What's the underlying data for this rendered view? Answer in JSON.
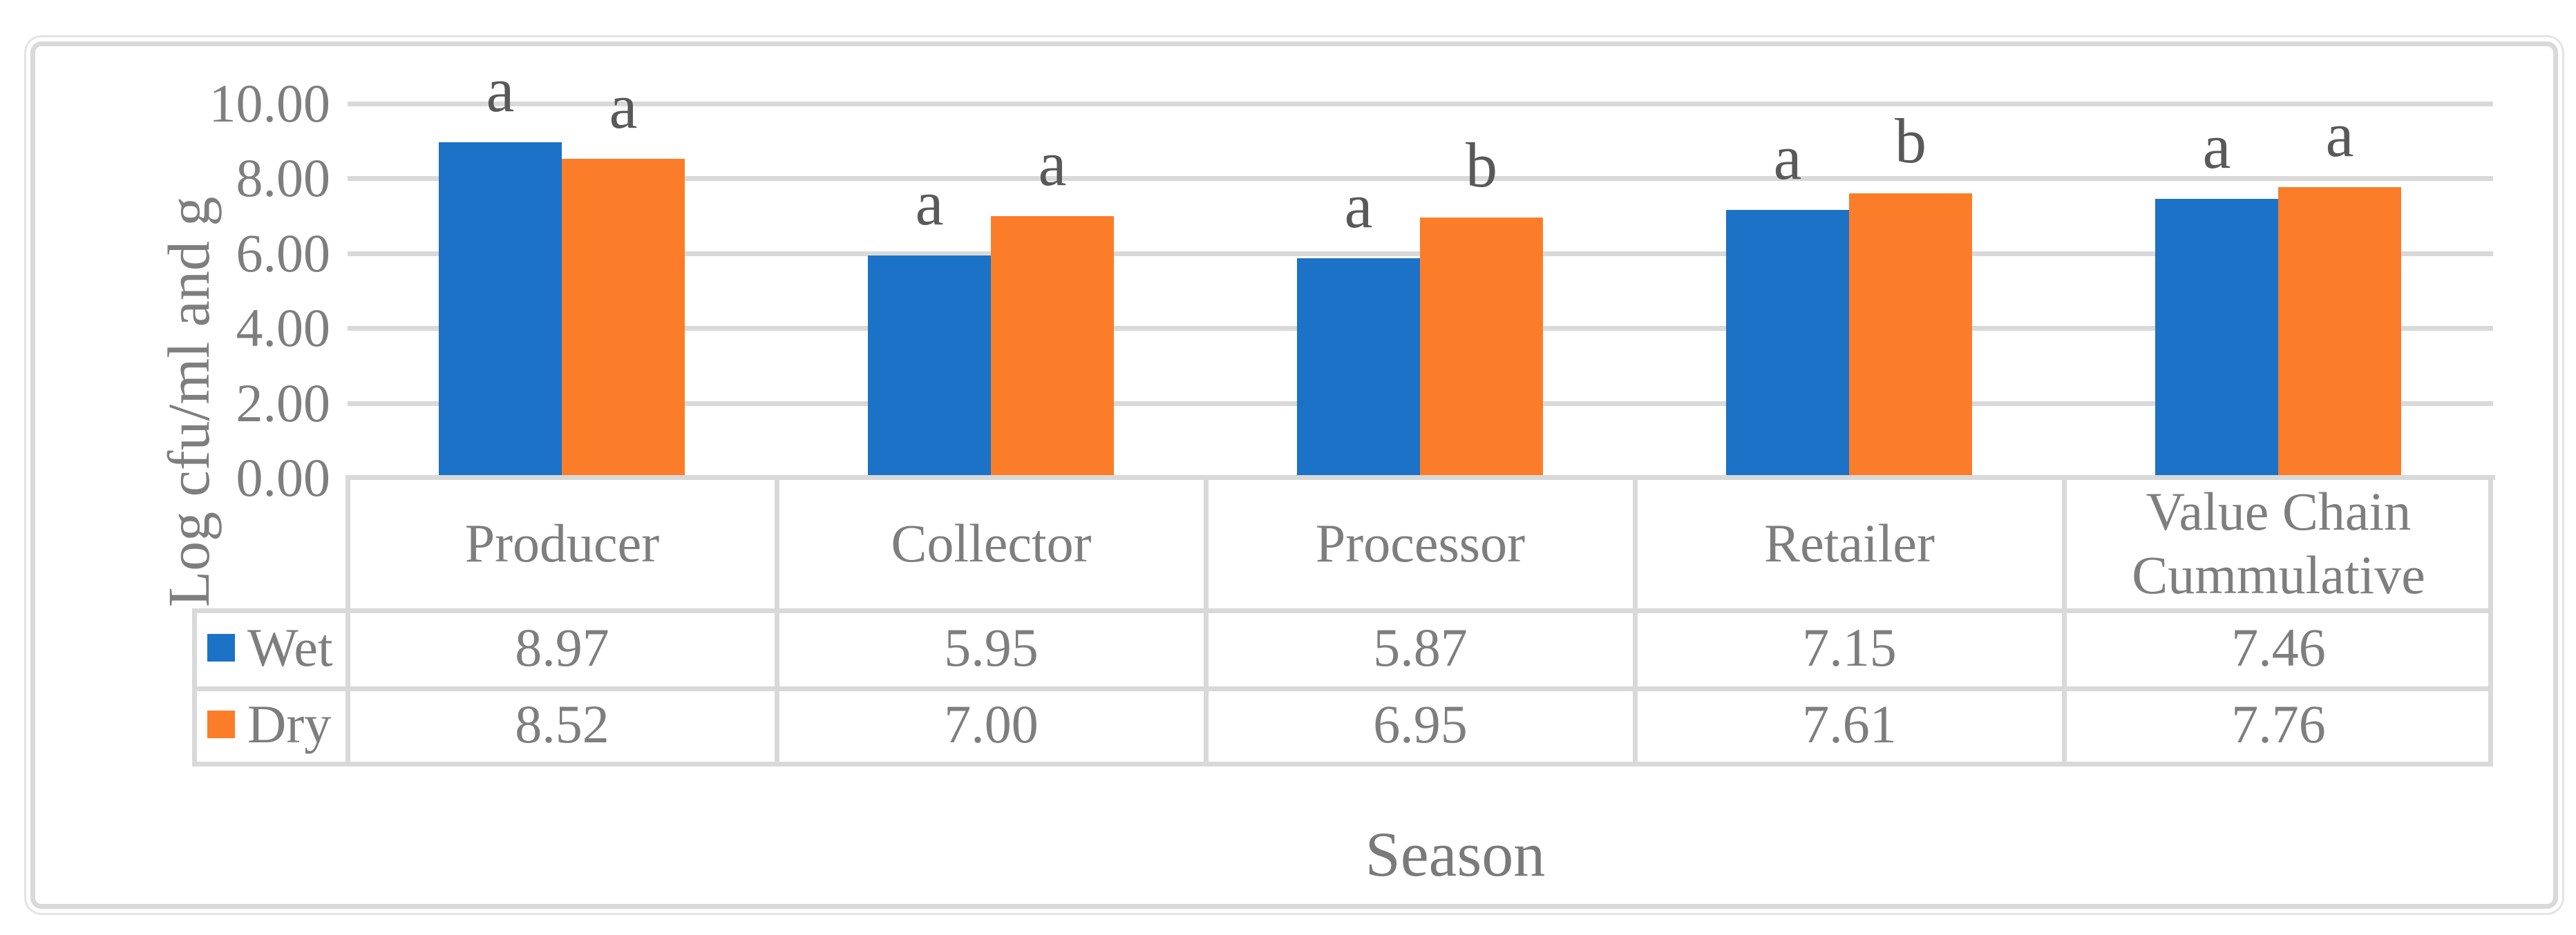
{
  "figure": {
    "ylabel": "Log cfu/ml and g",
    "season_label": "Season"
  },
  "chart_data": {
    "type": "bar",
    "title": "",
    "xlabel": "Season",
    "ylabel": "Log cfu/ml and g",
    "categories": [
      "Producer",
      "Collector",
      "Processor",
      "Retailer",
      "Value Chain Cummulative"
    ],
    "series": [
      {
        "name": "Wet",
        "color": "#1B72C6",
        "values": [
          8.97,
          5.95,
          5.87,
          7.15,
          7.46
        ],
        "significance_letters": [
          "a",
          "a",
          "a",
          "a",
          "a"
        ]
      },
      {
        "name": "Dry",
        "color": "#FB7D29",
        "values": [
          8.52,
          7.0,
          6.95,
          7.61,
          7.76
        ],
        "significance_letters": [
          "a",
          "a",
          "b",
          "b",
          "a"
        ]
      }
    ],
    "ylim": [
      0,
      10
    ],
    "ytick_labels": [
      "10.00",
      "8.00",
      "6.00",
      "4.00",
      "2.00",
      "0.00"
    ],
    "ytick_values": [
      10,
      8,
      6,
      4,
      2,
      0
    ],
    "grid": true,
    "legend_position": "data-table-rows",
    "value_decimals": 2,
    "gridline_color": "#D9D9D9",
    "text_color": "#7E7E7E",
    "letter_color": "#595959"
  }
}
